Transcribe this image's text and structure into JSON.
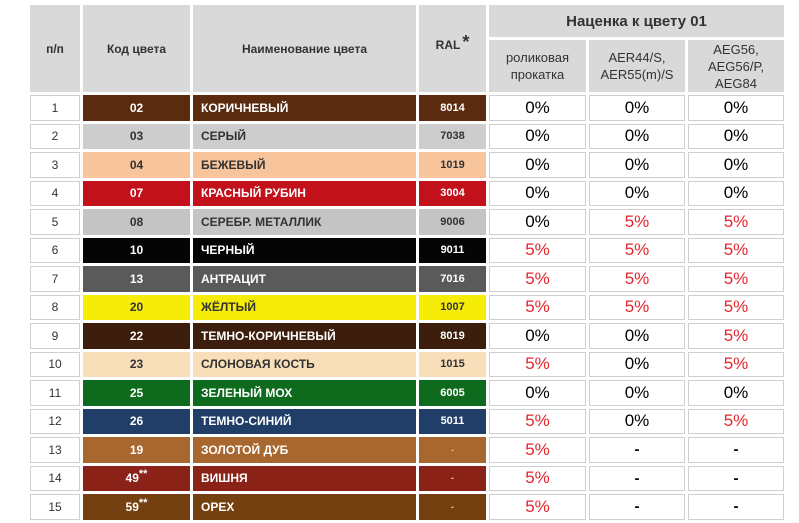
{
  "header": {
    "col_num": "п/п",
    "col_code": "Код цвета",
    "col_name": "Наименование цвета",
    "col_ral": "RAL",
    "ral_mark": "*",
    "markup_title": "Наценка к цвету 01",
    "sub1": [
      "роликовая",
      "прокатка"
    ],
    "sub2": [
      "AER44/S,",
      "AER55(m)/S"
    ],
    "sub3": [
      "AEG56,",
      "AEG56/P,",
      "AEG84"
    ]
  },
  "rows": [
    {
      "num": "1",
      "code": "02",
      "code_mark": "",
      "name": "КОРИЧНЕВЫЙ",
      "ral": "8014",
      "m1": "0%",
      "m2": "0%",
      "m3": "0%",
      "bg": "#5b2b10",
      "fg": "#ffffff",
      "r1": false,
      "r2": false,
      "r3": false
    },
    {
      "num": "2",
      "code": "03",
      "code_mark": "",
      "name": "СЕРЫЙ",
      "ral": "7038",
      "m1": "0%",
      "m2": "0%",
      "m3": "0%",
      "bg": "#cdcdcd",
      "fg": "#333333",
      "r1": false,
      "r2": false,
      "r3": false
    },
    {
      "num": "3",
      "code": "04",
      "code_mark": "",
      "name": "БЕЖЕВЫЙ",
      "ral": "1019",
      "m1": "0%",
      "m2": "0%",
      "m3": "0%",
      "bg": "#f7c49c",
      "fg": "#333333",
      "r1": false,
      "r2": false,
      "r3": false
    },
    {
      "num": "4",
      "code": "07",
      "code_mark": "",
      "name": "КРАСНЫЙ РУБИН",
      "ral": "3004",
      "m1": "0%",
      "m2": "0%",
      "m3": "0%",
      "bg": "#c2111b",
      "fg": "#ffffff",
      "r1": false,
      "r2": false,
      "r3": false
    },
    {
      "num": "5",
      "code": "08",
      "code_mark": "",
      "name": "СЕРЕБР. МЕТАЛЛИК",
      "ral": "9006",
      "m1": "0%",
      "m2": "5%",
      "m3": "5%",
      "bg": "#c4c4c4",
      "fg": "#333333",
      "r1": false,
      "r2": true,
      "r3": true
    },
    {
      "num": "6",
      "code": "10",
      "code_mark": "",
      "name": "ЧЕРНЫЙ",
      "ral": "9011",
      "m1": "5%",
      "m2": "5%",
      "m3": "5%",
      "bg": "#050505",
      "fg": "#ffffff",
      "r1": true,
      "r2": true,
      "r3": true
    },
    {
      "num": "7",
      "code": "13",
      "code_mark": "",
      "name": "АНТРАЦИТ",
      "ral": "7016",
      "m1": "5%",
      "m2": "5%",
      "m3": "5%",
      "bg": "#5a5a5a",
      "fg": "#ffffff",
      "r1": true,
      "r2": true,
      "r3": true
    },
    {
      "num": "8",
      "code": "20",
      "code_mark": "",
      "name": "ЖЁЛТЫЙ",
      "ral": "1007",
      "m1": "5%",
      "m2": "5%",
      "m3": "5%",
      "bg": "#f5ec07",
      "fg": "#333333",
      "r1": true,
      "r2": true,
      "r3": true
    },
    {
      "num": "9",
      "code": "22",
      "code_mark": "",
      "name": "ТЕМНО-КОРИЧНЕВЫЙ",
      "ral": "8019",
      "m1": "0%",
      "m2": "0%",
      "m3": "5%",
      "bg": "#3d1e0c",
      "fg": "#ffffff",
      "r1": false,
      "r2": false,
      "r3": true
    },
    {
      "num": "10",
      "code": "23",
      "code_mark": "",
      "name": "СЛОНОВАЯ КОСТЬ",
      "ral": "1015",
      "m1": "5%",
      "m2": "0%",
      "m3": "5%",
      "bg": "#f8dfba",
      "fg": "#333333",
      "r1": true,
      "r2": false,
      "r3": true
    },
    {
      "num": "11",
      "code": "25",
      "code_mark": "",
      "name": "ЗЕЛЕНЫЙ МОХ",
      "ral": "6005",
      "m1": "0%",
      "m2": "0%",
      "m3": "0%",
      "bg": "#0e6a1c",
      "fg": "#ffffff",
      "r1": false,
      "r2": false,
      "r3": false
    },
    {
      "num": "12",
      "code": "26",
      "code_mark": "",
      "name": "ТЕМНО-СИНИЙ",
      "ral": "5011",
      "m1": "5%",
      "m2": "0%",
      "m3": "5%",
      "bg": "#203e68",
      "fg": "#ffffff",
      "r1": true,
      "r2": false,
      "r3": true
    },
    {
      "num": "13",
      "code": "19",
      "code_mark": "",
      "name": "ЗОЛОТОЙ ДУБ",
      "ral": "-",
      "m1": "5%",
      "m2": "-",
      "m3": "-",
      "bg": "#a8672e",
      "fg": "#ffffff",
      "r1": true,
      "r2": false,
      "r3": false
    },
    {
      "num": "14",
      "code": "49",
      "code_mark": "**",
      "name": "ВИШНЯ",
      "ral": "-",
      "m1": "5%",
      "m2": "-",
      "m3": "-",
      "bg": "#8a2218",
      "fg": "#ffffff",
      "r1": true,
      "r2": false,
      "r3": false
    },
    {
      "num": "15",
      "code": "59",
      "code_mark": "**",
      "name": "ОРЕХ",
      "ral": "-",
      "m1": "5%",
      "m2": "-",
      "m3": "-",
      "bg": "#74400f",
      "fg": "#ffffff",
      "r1": true,
      "r2": false,
      "r3": false
    }
  ],
  "colors": {
    "header_bg": "#d9d9d9",
    "red": "#e3262d",
    "dash_ral": "#f0a060"
  }
}
